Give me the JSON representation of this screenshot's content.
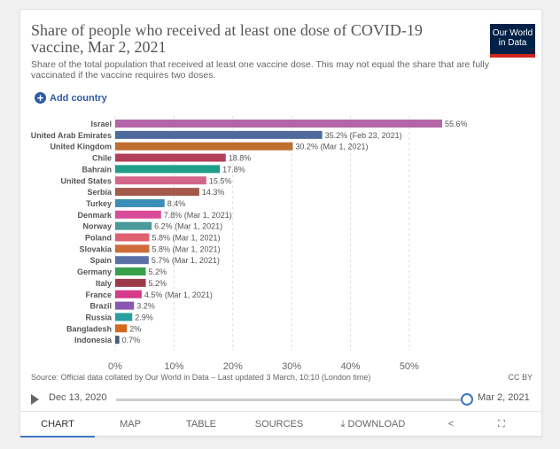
{
  "header": {
    "title": "Share of people who received at least one dose of COVID-19 vaccine, Mar 2, 2021",
    "subtitle": "Share of the total population that received at least one vaccine dose. This may not equal the share that are fully vaccinated if the vaccine requires two doses.",
    "logo_text": "Our World in Data",
    "logo_colors": {
      "background": "#002147",
      "accent": "#ce261e"
    }
  },
  "controls": {
    "add_country": "Add country"
  },
  "chart_data": {
    "type": "bar",
    "orientation": "horizontal",
    "unit": "%",
    "xlim": [
      0,
      55.6
    ],
    "x_ticks": [
      "0%",
      "10%",
      "20%",
      "30%",
      "40%",
      "50%"
    ],
    "x_tick_values": [
      0,
      10,
      20,
      30,
      40,
      50
    ],
    "grid": "vertical dashed",
    "categories": [
      "Israel",
      "United Arab Emirates",
      "United Kingdom",
      "Chile",
      "Bahrain",
      "United States",
      "Serbia",
      "Turkey",
      "Denmark",
      "Norway",
      "Poland",
      "Slovakia",
      "Spain",
      "Germany",
      "Italy",
      "France",
      "Brazil",
      "Russia",
      "Bangladesh",
      "Indonesia"
    ],
    "values": [
      55.6,
      35.2,
      30.2,
      18.8,
      17.8,
      15.5,
      14.3,
      8.4,
      7.8,
      6.2,
      5.8,
      5.8,
      5.7,
      5.2,
      5.2,
      4.5,
      3.2,
      2.9,
      2,
      0.7
    ],
    "value_labels": [
      "55.6%",
      "35.2% (Feb 23, 2021)",
      "30.2% (Mar 1, 2021)",
      "18.8%",
      "17.8%",
      "15.5%",
      "14.3%",
      "8.4%",
      "7.8% (Mar 1, 2021)",
      "6.2% (Mar 1, 2021)",
      "5.8% (Mar 1, 2021)",
      "5.8% (Mar 1, 2021)",
      "5.7% (Mar 1, 2021)",
      "5.2%",
      "5.2%",
      "4.5% (Mar 1, 2021)",
      "3.2%",
      "2.9%",
      "2%",
      "0.7%"
    ],
    "colors": [
      "#b565a7",
      "#4c6a9c",
      "#bf6e2f",
      "#b43f5a",
      "#1f9e89",
      "#d4658b",
      "#a35a4a",
      "#3a8fb7",
      "#d94c9a",
      "#4a9a9a",
      "#e06070",
      "#cf6d3a",
      "#5b6fa8",
      "#3a9f4a",
      "#9c3a4a",
      "#d63a8a",
      "#8a56b0",
      "#2a9f9f",
      "#d2691e",
      "#4a5a7a"
    ]
  },
  "footer": {
    "source": "Source: Official data collated by Our World in Data – Last updated 3 March, 10:10 (London time)",
    "license": "CC BY"
  },
  "timeline": {
    "start_date": "Dec 13, 2020",
    "end_date": "Mar 2, 2021",
    "position": 1.0
  },
  "tabs": [
    {
      "label": "CHART",
      "active": true
    },
    {
      "label": "MAP"
    },
    {
      "label": "TABLE"
    },
    {
      "label": "SOURCES"
    },
    {
      "label": "DOWNLOAD",
      "icon": "download-icon"
    },
    {
      "label": "",
      "icon": "share-icon",
      "glyph": "<"
    },
    {
      "label": "",
      "icon": "fullscreen-icon",
      "glyph": "⛶"
    }
  ]
}
